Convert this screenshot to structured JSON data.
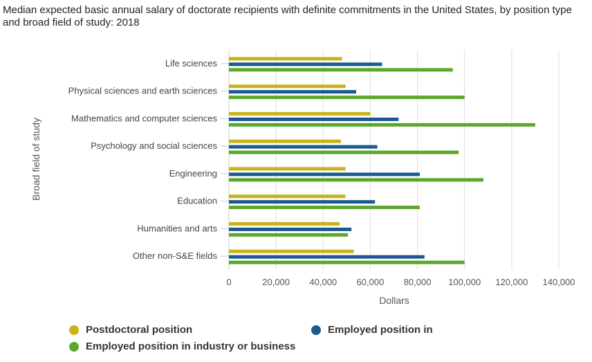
{
  "title": "Median expected basic annual salary of doctorate recipients with definite commitments in the United States, by position type and broad field of study: 2018",
  "legend": {
    "postdoc": "Postdoctoral position",
    "employed_other": "Employed position in",
    "employed_industry": "Employed position in industry or business"
  },
  "colors": {
    "postdoc": "#c8b416",
    "employed_other": "#1b5a8e",
    "employed_industry": "#5aa82a",
    "grid": "#dddddd",
    "axis_text": "#555555"
  },
  "chart_data": {
    "type": "bar",
    "orientation": "horizontal",
    "title": "Median expected basic annual salary of doctorate recipients with definite commitments in the United States, by position type and broad field of study: 2018",
    "xlabel": "Dollars",
    "ylabel": "Broad field of study",
    "xlim": [
      0,
      140000
    ],
    "xticks": [
      0,
      20000,
      40000,
      60000,
      80000,
      100000,
      120000,
      140000
    ],
    "xtick_labels": [
      "0",
      "20,000",
      "40,000",
      "60,000",
      "80,000",
      "100,000",
      "120,000",
      "140,000"
    ],
    "grid": true,
    "legend_position": "bottom",
    "categories": [
      "Life sciences",
      "Physical sciences and earth sciences",
      "Mathematics and computer sciences",
      "Psychology and social sciences",
      "Engineering",
      "Education",
      "Humanities and arts",
      "Other non-S&E fields"
    ],
    "series": [
      {
        "name": "Postdoctoral position",
        "color": "#c8b416",
        "values": [
          48000,
          49500,
          60000,
          47500,
          49500,
          49500,
          47000,
          53000
        ]
      },
      {
        "name": "Employed position in",
        "color": "#1b5a8e",
        "values": [
          65000,
          54000,
          72000,
          63000,
          81000,
          62000,
          52000,
          83000
        ]
      },
      {
        "name": "Employed position in industry or business",
        "color": "#5aa82a",
        "values": [
          95000,
          100000,
          130000,
          97500,
          108000,
          81000,
          50500,
          100000
        ]
      }
    ]
  }
}
